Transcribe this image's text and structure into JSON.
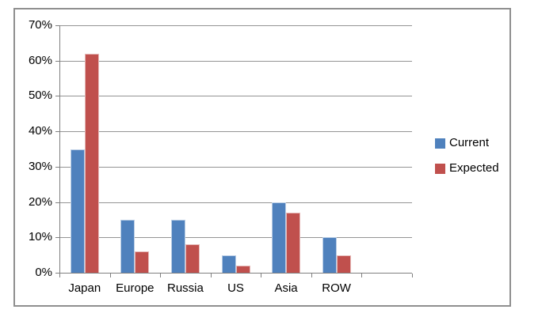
{
  "chart_data": {
    "type": "bar",
    "title": "",
    "xlabel": "",
    "ylabel": "",
    "categories": [
      "Japan",
      "Europe",
      "Russia",
      "US",
      "Asia",
      "ROW"
    ],
    "series": [
      {
        "name": "Current",
        "color": "#4f81bd",
        "border_color": "#b9cde5",
        "values": [
          35,
          15,
          15,
          5,
          20,
          10
        ]
      },
      {
        "name": "Expected",
        "color": "#c0504d",
        "border_color": "#e6b9b8",
        "values": [
          62,
          6,
          8,
          2,
          17,
          5
        ]
      }
    ],
    "y_ticks": [
      "0%",
      "10%",
      "20%",
      "30%",
      "40%",
      "50%",
      "60%",
      "70%"
    ],
    "ylim": [
      0,
      70
    ],
    "y_tick_step": 10,
    "grid": true,
    "legend_position": "right",
    "x_segments": 7,
    "empty_trailing_segment": true
  },
  "frame": {
    "border_color": "#8f8f8f",
    "gridline_color": "#949494",
    "axis_color": "#7f7f7f"
  }
}
